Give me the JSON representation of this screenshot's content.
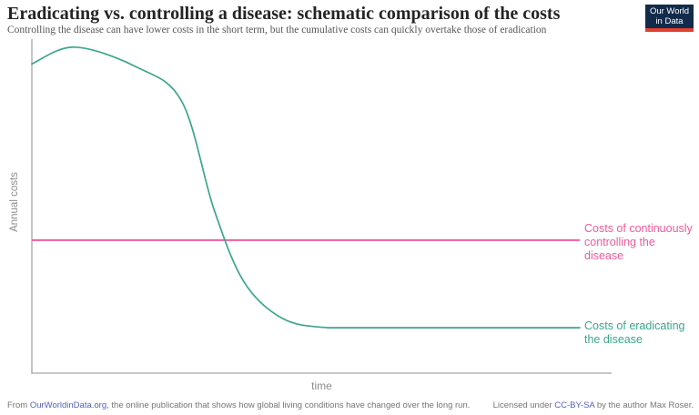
{
  "header": {
    "title": "Eradicating vs. controlling a disease: schematic comparison of the costs",
    "subtitle": "Controlling the disease can have lower costs in the short term, but the cumulative costs can quickly overtake those of eradication",
    "logo": {
      "line1": "Our World",
      "line2": "in Data"
    }
  },
  "chart_data": {
    "type": "line",
    "schematic": true,
    "title": "Eradicating vs. controlling a disease: schematic comparison of the costs",
    "xlabel": "time",
    "ylabel": "Annual costs",
    "grid": false,
    "x_axis": {
      "label": "time",
      "ticks": [],
      "range_note": "unlabeled schematic time axis"
    },
    "y_axis": {
      "label": "Annual costs",
      "ticks": [],
      "range_note": "unlabeled schematic cost axis"
    },
    "legend_position": "right-of-lines",
    "series": [
      {
        "name": "Costs of eradicating the disease",
        "color": "#3BA68C",
        "shape": "starts high, brief rise to peak, steep sigmoid decline, flat low plateau",
        "points_normalized": [
          [
            0.0,
            0.926
          ],
          [
            0.074,
            0.976
          ],
          [
            0.181,
            0.916
          ],
          [
            0.259,
            0.812
          ],
          [
            0.314,
            0.491
          ],
          [
            0.366,
            0.273
          ],
          [
            0.432,
            0.164
          ],
          [
            0.51,
            0.136
          ],
          [
            0.62,
            0.136
          ],
          [
            0.945,
            0.136
          ]
        ]
      },
      {
        "name": "Costs of continuously controlling the disease",
        "color": "#F05B9C",
        "shape": "constant horizontal line",
        "points_normalized": [
          [
            0.0,
            0.398
          ],
          [
            0.945,
            0.398
          ]
        ]
      }
    ]
  },
  "series_labels": {
    "control": {
      "lines": [
        "Costs of continuously",
        "controlling the disease"
      ],
      "color": "#F05B9C"
    },
    "eradicate": {
      "lines": [
        "Costs of eradicating",
        "the disease"
      ],
      "color": "#3BA68C"
    }
  },
  "colors": {
    "teal_series": "#3BA68C",
    "pink_series": "#F05B9C",
    "axis_gray": "#a6a6a6",
    "axis_label_gray": "#8c8c8c",
    "logo_navy": "#132b4a",
    "logo_red": "#e3402f",
    "footer_gray": "#757575",
    "link_blue": "#5560c0"
  },
  "footer": {
    "left": {
      "prefix": "From ",
      "link": "OurWorldinData.org",
      "suffix": ", the online publication that shows how global living conditions have changed over the long run."
    },
    "right": {
      "prefix": "Licensed under ",
      "link": "CC-BY-SA",
      "suffix": " by the author Max Roser."
    }
  }
}
